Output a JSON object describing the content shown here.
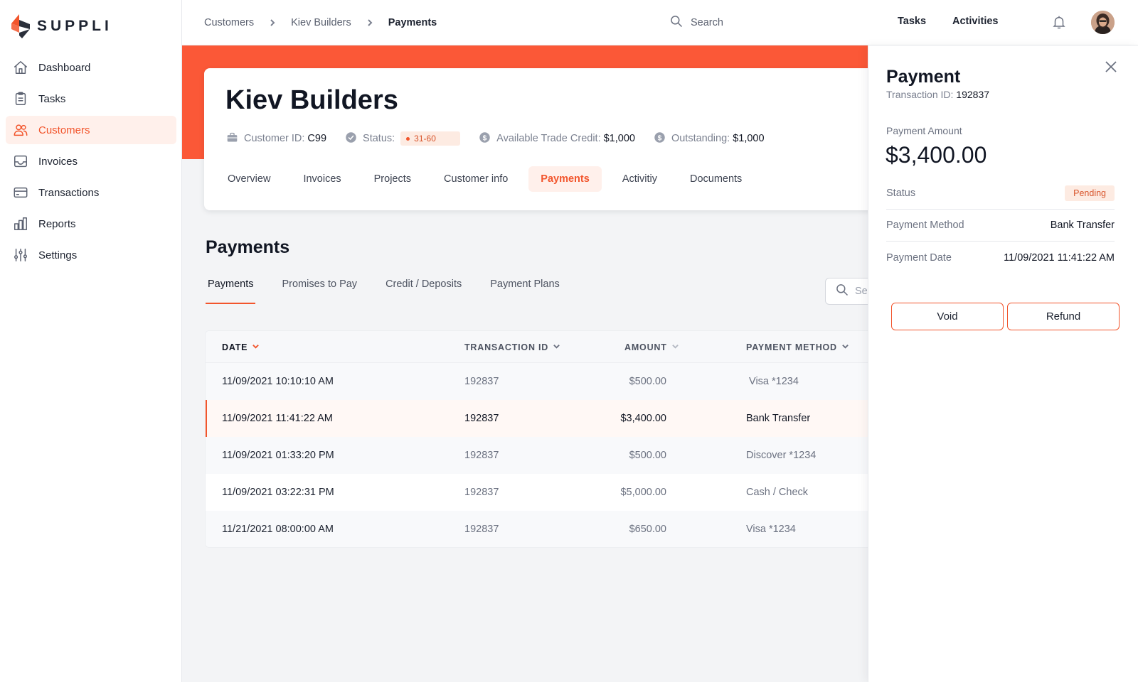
{
  "brand": {
    "name": "SUPPLI",
    "accent": "#f2552c"
  },
  "sidebar": {
    "items": [
      {
        "label": "Dashboard",
        "icon": "home-icon",
        "active": false
      },
      {
        "label": "Tasks",
        "icon": "clipboard-icon",
        "active": false
      },
      {
        "label": "Customers",
        "icon": "users-icon",
        "active": true
      },
      {
        "label": "Invoices",
        "icon": "inbox-icon",
        "active": false
      },
      {
        "label": "Transactions",
        "icon": "credit-card-icon",
        "active": false
      },
      {
        "label": "Reports",
        "icon": "bar-chart-icon",
        "active": false
      },
      {
        "label": "Settings",
        "icon": "sliders-icon",
        "active": false
      }
    ]
  },
  "topbar": {
    "breadcrumb": [
      "Customers",
      "Kiev Builders",
      "Payments"
    ],
    "search_placeholder": "Search",
    "tasks_label": "Tasks",
    "activities_label": "Activities"
  },
  "customer": {
    "name": "Kiev Builders",
    "id_label": "Customer ID:",
    "id_value": "C99",
    "status_label": "Status:",
    "status_value": "31-60",
    "credit_label": "Available Trade Credit:",
    "credit_value": "$1,000",
    "outstanding_label": "Outstanding:",
    "outstanding_value": "$1,000",
    "tabs": [
      "Overview",
      "Invoices",
      "Projects",
      "Customer info",
      "Payments",
      "Activitiy",
      "Documents"
    ],
    "active_tab": "Payments"
  },
  "payments": {
    "title": "Payments",
    "sub_tabs": [
      "Payments",
      "Promises to Pay",
      "Credit / Deposits",
      "Payment Plans"
    ],
    "search_placeholder": "Search",
    "columns": [
      "DATE",
      "TRANSACTION ID",
      "AMOUNT",
      "PAYMENT METHOD"
    ],
    "rows": [
      {
        "date": "11/09/2021 10:10:10 AM",
        "tid": "192837",
        "amount": "$500.00",
        "method": " Visa *1234"
      },
      {
        "date": "11/09/2021 11:41:22 AM",
        "tid": "192837",
        "amount": "$3,400.00",
        "method": "Bank Transfer"
      },
      {
        "date": "11/09/2021 01:33:20 PM",
        "tid": "192837",
        "amount": "$500.00",
        "method": "Discover *1234"
      },
      {
        "date": "11/09/2021 03:22:31 PM",
        "tid": "192837",
        "amount": "$5,000.00",
        "method": "Cash / Check"
      },
      {
        "date": "11/21/2021 08:00:00 AM",
        "tid": "192837",
        "amount": "$650.00",
        "method": "Visa *1234"
      }
    ]
  },
  "panel": {
    "title": "Payment",
    "tid_label": "Transaction ID:",
    "tid_value": "192837",
    "amount_label": "Payment Amount",
    "amount_value": "$3,400.00",
    "status_label": "Status",
    "status_value": "Pending",
    "method_label": "Payment Method",
    "method_value": "Bank Transfer",
    "date_label": "Payment Date",
    "date_value": "11/09/2021 11:41:22 AM",
    "void_label": "Void",
    "refund_label": "Refund"
  }
}
